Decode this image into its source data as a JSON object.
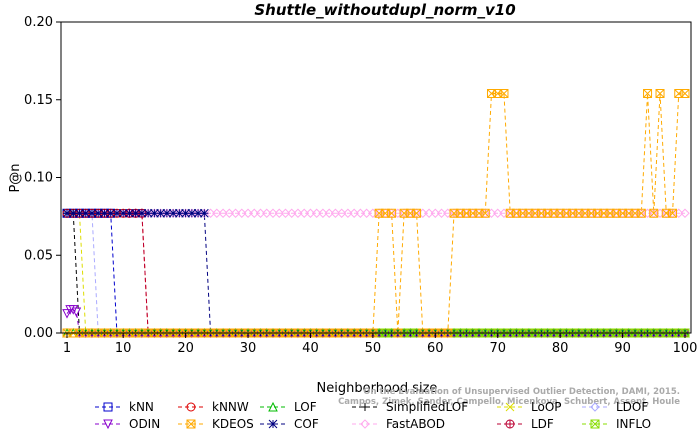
{
  "chart_data": {
    "type": "line",
    "title": "Shuttle_withoutdupl_norm_v10",
    "xlabel": "Neighborhood size",
    "ylabel": "P@n",
    "xlim": [
      1,
      100
    ],
    "ylim": [
      0,
      0.2
    ],
    "xticks": [
      1,
      10,
      20,
      30,
      40,
      50,
      60,
      70,
      80,
      90,
      100
    ],
    "yticks": [
      "0.00",
      "0.05",
      "0.10",
      "0.15",
      "0.20"
    ],
    "credit": [
      "Campos, Zimek, Sander, Campello, Micenkova, Schubert, Assent, Houle",
      "On the Evaluation of Unsupervised Outlier Detection, DAMI, 2015."
    ],
    "series": [
      {
        "name": "kNN",
        "color": "#0000cc",
        "marker": "square",
        "points": [
          [
            1,
            0.077
          ],
          [
            8,
            0.077
          ],
          [
            9,
            0
          ]
        ],
        "to": 100
      },
      {
        "name": "kNNW",
        "color": "#dd0000",
        "marker": "circle",
        "points": [
          [
            1,
            0.077
          ],
          [
            13,
            0.077
          ],
          [
            14,
            0
          ]
        ],
        "to": 100
      },
      {
        "name": "LOF",
        "color": "#00bb00",
        "marker": "triangle",
        "points": [
          [
            1,
            0
          ]
        ],
        "to": 100
      },
      {
        "name": "SimplifiedLOF",
        "color": "#000000",
        "marker": "plus",
        "points": [
          [
            1,
            0.077
          ],
          [
            2,
            0.077
          ],
          [
            3,
            0
          ]
        ],
        "to": 100
      },
      {
        "name": "LoOP",
        "color": "#dddd00",
        "marker": "x",
        "points": [
          [
            1,
            0.077
          ],
          [
            3,
            0.077
          ],
          [
            4,
            0
          ]
        ],
        "to": 100
      },
      {
        "name": "LDOF",
        "color": "#aaaaff",
        "marker": "diamond",
        "points": [
          [
            1,
            0.077
          ],
          [
            5,
            0.077
          ],
          [
            6,
            0
          ]
        ],
        "to": 100
      },
      {
        "name": "ODIN",
        "color": "#8800cc",
        "marker": "triangle-down",
        "points": [
          [
            1,
            0.0125
          ],
          [
            1.5,
            0.015
          ],
          [
            2,
            0.015
          ],
          [
            2.5,
            0.0135
          ],
          [
            3,
            0
          ]
        ],
        "to": 100
      },
      {
        "name": "KDEOS",
        "color": "#ffaa00",
        "marker": "boxed-x",
        "points": [
          [
            1,
            0
          ],
          [
            50,
            0
          ],
          [
            51,
            0.077
          ],
          [
            53,
            0.077
          ],
          [
            54,
            0
          ],
          [
            55,
            0.077
          ],
          [
            57,
            0.077
          ],
          [
            58,
            0
          ],
          [
            62,
            0
          ],
          [
            63,
            0.077
          ],
          [
            68,
            0.077
          ],
          [
            69,
            0.154
          ],
          [
            71,
            0.154
          ],
          [
            72,
            0.077
          ],
          [
            93,
            0.077
          ],
          [
            94,
            0.154
          ],
          [
            95,
            0.077
          ],
          [
            96,
            0.154
          ],
          [
            97,
            0.077
          ],
          [
            98,
            0.077
          ],
          [
            99,
            0.154
          ],
          [
            100,
            0.154
          ]
        ],
        "to": 100
      },
      {
        "name": "COF",
        "color": "#000080",
        "marker": "star",
        "points": [
          [
            1,
            0.077
          ],
          [
            23,
            0.077
          ],
          [
            24,
            0
          ]
        ],
        "to": 100
      },
      {
        "name": "FastABOD",
        "color": "#ffaaee",
        "marker": "diamond",
        "points": [
          [
            1,
            0.077
          ]
        ],
        "to": 100
      },
      {
        "name": "LDF",
        "color": "#bb0033",
        "marker": "circle-plus",
        "points": [
          [
            11,
            0.077
          ],
          [
            13,
            0.077
          ],
          [
            14,
            0
          ]
        ],
        "to": 100,
        "from": 11
      },
      {
        "name": "INFLO",
        "color": "#88dd00",
        "marker": "boxed-x",
        "points": [
          [
            1,
            0
          ]
        ],
        "to": 100
      }
    ]
  }
}
